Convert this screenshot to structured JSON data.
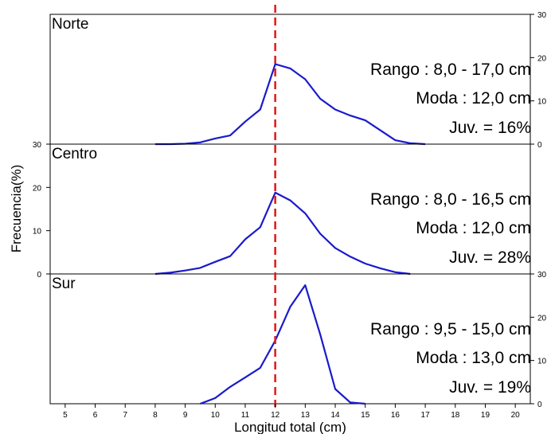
{
  "chart_data": {
    "type": "line",
    "xlabel": "Longitud total (cm)",
    "ylabel": "Frecuencia(%)",
    "x_ticks": [
      5,
      6,
      7,
      8,
      9,
      10,
      11,
      12,
      13,
      14,
      15,
      16,
      17,
      18,
      19,
      20
    ],
    "xlim": [
      4.5,
      20.5
    ],
    "ylim": [
      0,
      30
    ],
    "y_ticks": [
      0,
      10,
      20,
      30
    ],
    "reference_line": {
      "x": 12,
      "color": "#e02020",
      "style": "dashed"
    },
    "line_color": "#1a1acc",
    "panels": [
      {
        "title": "Norte",
        "y_axis_side": "right",
        "annotations": [
          "Rango : 8,0 - 17,0 cm",
          "Moda : 12,0 cm",
          "Juv. = 16%"
        ],
        "x": [
          8,
          8.5,
          9,
          9.5,
          10,
          10.5,
          11,
          11.5,
          12,
          12.5,
          13,
          13.5,
          14,
          14.5,
          15,
          15.5,
          16,
          16.5,
          17
        ],
        "y": [
          0,
          0,
          0.1,
          0.4,
          1.3,
          2.0,
          5.2,
          8.0,
          18.5,
          17.5,
          15.0,
          10.5,
          8.0,
          6.6,
          5.5,
          3.2,
          0.9,
          0.2,
          0
        ]
      },
      {
        "title": "Centro",
        "y_axis_side": "left",
        "annotations": [
          "Rango : 8,0 - 16,5 cm",
          "Moda : 12,0 cm",
          "Juv. = 28%"
        ],
        "x": [
          8,
          8.5,
          9,
          9.5,
          10,
          10.5,
          11,
          11.5,
          12,
          12.5,
          13,
          13.5,
          14,
          14.5,
          15,
          15.5,
          16,
          16.5
        ],
        "y": [
          0,
          0.3,
          0.8,
          1.4,
          2.8,
          4.1,
          8.0,
          10.8,
          18.8,
          17.0,
          14.0,
          9.3,
          6.0,
          4.0,
          2.4,
          1.3,
          0.4,
          0
        ]
      },
      {
        "title": "Sur",
        "y_axis_side": "right",
        "annotations": [
          "Rango : 9,5 - 15,0 cm",
          "Moda : 13,0 cm",
          "Juv. = 19%"
        ],
        "x": [
          9.5,
          10,
          10.5,
          11,
          11.5,
          12,
          12.5,
          13,
          13.5,
          14,
          14.5,
          15
        ],
        "y": [
          0,
          1.3,
          3.9,
          6.1,
          8.3,
          14.6,
          22.4,
          27.4,
          16.0,
          3.4,
          0.3,
          0
        ]
      }
    ]
  }
}
